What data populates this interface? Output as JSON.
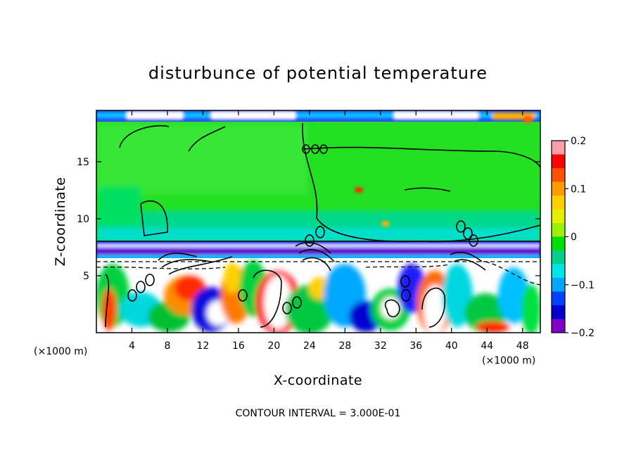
{
  "chart_data": {
    "type": "heatmap",
    "title": "disturbunce of potential temperature",
    "xlabel": "X-coordinate",
    "ylabel": "Z-coordinate",
    "x_unit": "(×1000 m)",
    "z_unit": "(×1000 m)",
    "xlim": [
      0,
      50
    ],
    "ylim": [
      0,
      19.5
    ],
    "x_ticks": [
      4,
      8,
      12,
      16,
      20,
      24,
      28,
      32,
      36,
      40,
      44,
      48
    ],
    "y_ticks": [
      5,
      10,
      15
    ],
    "colorbar": {
      "range": [
        -0.2,
        0.2
      ],
      "ticks": [
        0.2,
        0.1,
        0,
        -0.1,
        -0.2
      ],
      "tick_labels": [
        "0.2",
        "0.1",
        "0",
        "−0.1",
        "−0.2"
      ],
      "colors": [
        "#ff9ea8",
        "#ff0000",
        "#ff5000",
        "#ff9a00",
        "#ffd000",
        "#e4f000",
        "#9cf000",
        "#00e000",
        "#00d08c",
        "#00e6e6",
        "#00a8ff",
        "#0040ff",
        "#0000d0",
        "#8000c8"
      ]
    },
    "regions_note": "upper layer (z > 8 km) near-zero (green); unstable layer z ~ 7.5 km negative (blue/purple); lower layer z < 7 km mixed turbulent values from -0.2 to 0.2",
    "contour_interval_text": "CONTOUR INTERVAL = 3.000E-01"
  }
}
